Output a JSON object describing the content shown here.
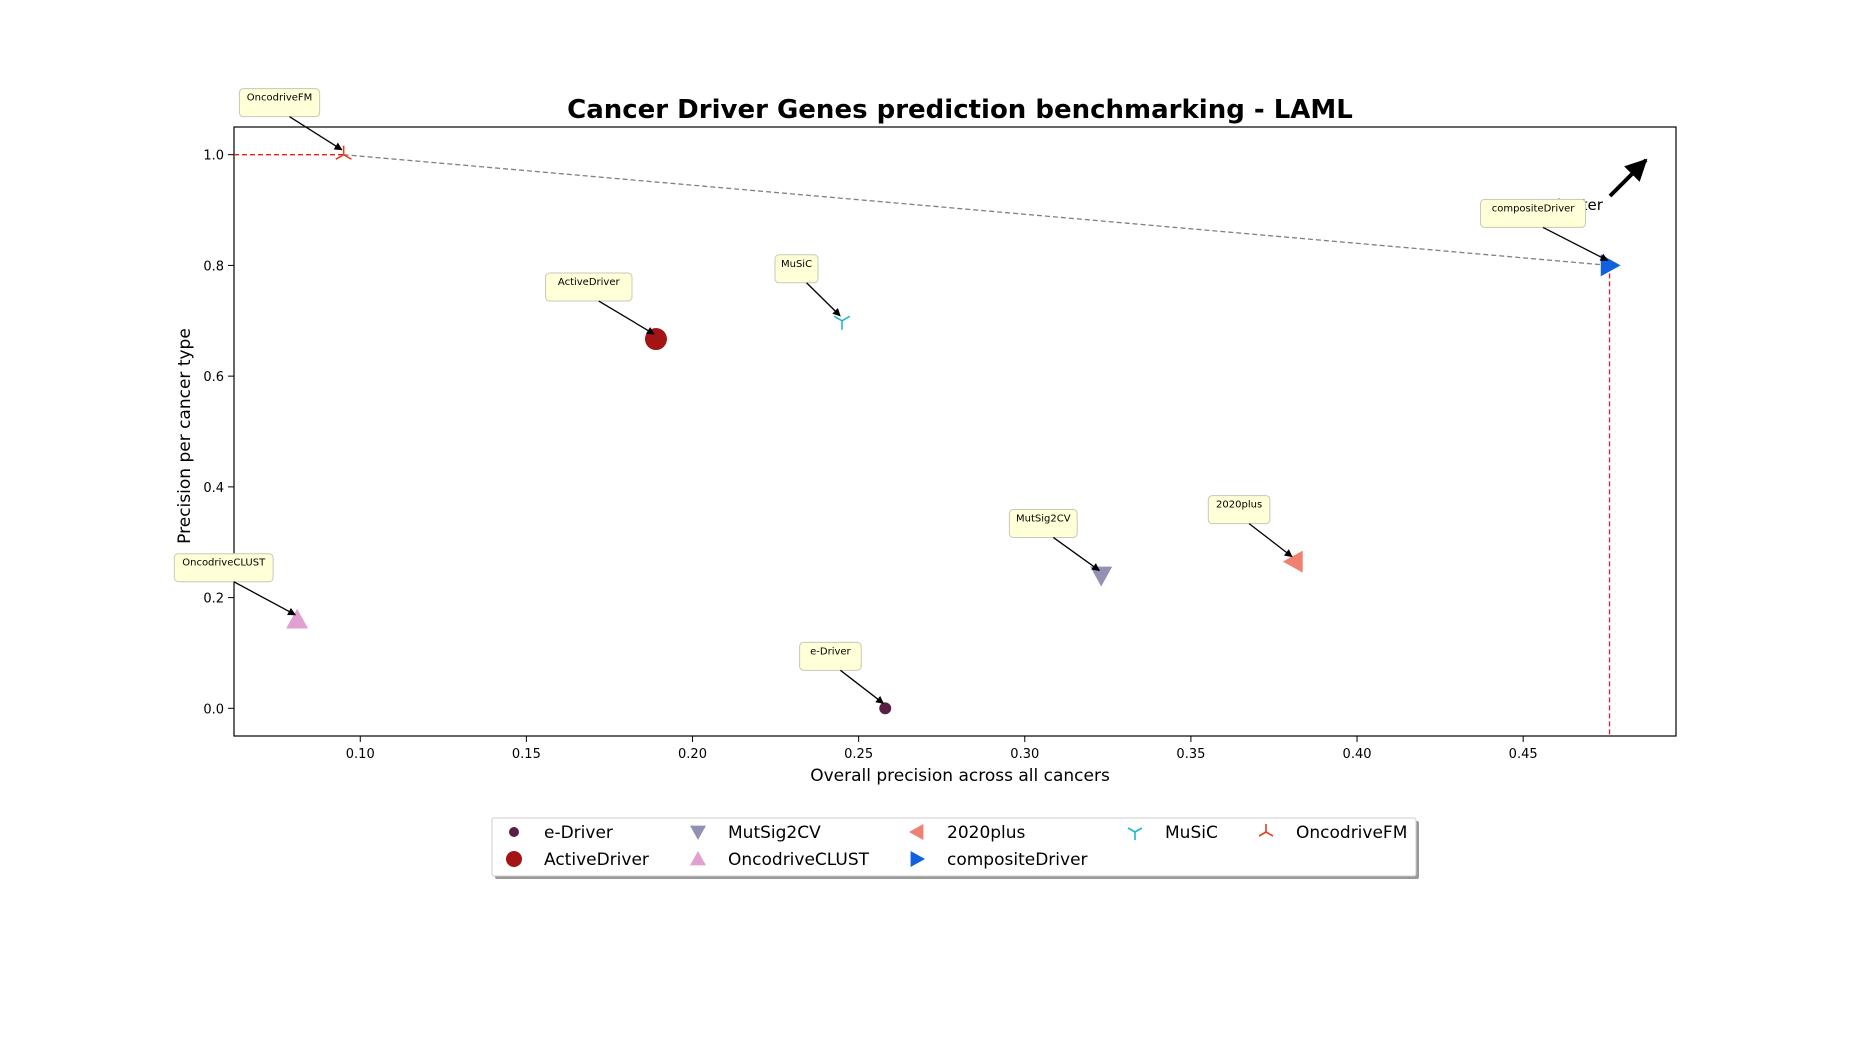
{
  "chart_data": {
    "type": "scatter",
    "title": "Cancer Driver Genes prediction benchmarking - LAML",
    "xlabel": "Overall precision across all cancers",
    "ylabel": "Precision per cancer type",
    "xlim": [
      0.062,
      0.496
    ],
    "ylim": [
      -0.05,
      1.05
    ],
    "xticks": [
      "0.10",
      "0.15",
      "0.20",
      "0.25",
      "0.30",
      "0.35",
      "0.40",
      "0.45"
    ],
    "yticks": [
      "0.0",
      "0.2",
      "0.4",
      "0.6",
      "0.8",
      "1.0"
    ],
    "grid": false,
    "legend_position": "bottom-center",
    "better_label": "better",
    "series": [
      {
        "name": "e-Driver",
        "x": 0.258,
        "y": 0.0,
        "marker": "circle-small",
        "color": "#5b1f45"
      },
      {
        "name": "ActiveDriver",
        "x": 0.189,
        "y": 0.667,
        "marker": "circle",
        "color": "#a31515"
      },
      {
        "name": "MutSig2CV",
        "x": 0.323,
        "y": 0.24,
        "marker": "triangle-down",
        "color": "#9291b4"
      },
      {
        "name": "OncodriveCLUST",
        "x": 0.081,
        "y": 0.16,
        "marker": "triangle-up",
        "color": "#e0a0d0"
      },
      {
        "name": "2020plus",
        "x": 0.381,
        "y": 0.265,
        "marker": "triangle-left",
        "color": "#f08070"
      },
      {
        "name": "compositeDriver",
        "x": 0.476,
        "y": 0.8,
        "marker": "triangle-right",
        "color": "#1060e0"
      },
      {
        "name": "MuSiC",
        "x": 0.245,
        "y": 0.7,
        "marker": "tri-down",
        "color": "#20b8c8"
      },
      {
        "name": "OncodriveFM",
        "x": 0.095,
        "y": 1.0,
        "marker": "tri-up",
        "color": "#e04020"
      }
    ],
    "pareto_front": [
      [
        0.095,
        1.0
      ],
      [
        0.476,
        0.8
      ]
    ]
  }
}
